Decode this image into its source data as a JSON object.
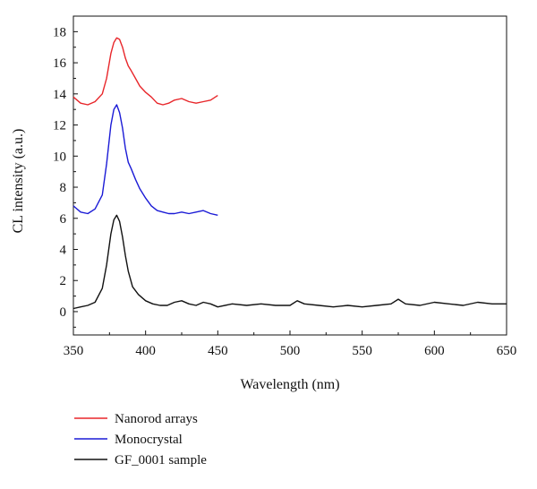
{
  "chart_data": {
    "type": "line",
    "title": "",
    "xlabel": "Wavelength (nm)",
    "ylabel": "CL intensity (a.u.)",
    "xlim": [
      350,
      650
    ],
    "ylim": [
      -1.5,
      19
    ],
    "xticks": [
      350,
      400,
      450,
      500,
      550,
      600,
      650
    ],
    "yticks": [
      0,
      2,
      4,
      6,
      8,
      10,
      12,
      14,
      16,
      18
    ],
    "grid": false,
    "legend_position": "bottom-left, below plot",
    "series": [
      {
        "name": "Nanorod arrays",
        "color": "#e8262a",
        "x": [
          350,
          355,
          360,
          365,
          370,
          373,
          376,
          378,
          380,
          382,
          384,
          386,
          388,
          390,
          393,
          396,
          400,
          404,
          408,
          412,
          416,
          420,
          425,
          430,
          435,
          440,
          445,
          450
        ],
        "y": [
          13.8,
          13.4,
          13.3,
          13.5,
          14.0,
          15.0,
          16.6,
          17.3,
          17.6,
          17.5,
          17.0,
          16.3,
          15.8,
          15.5,
          15.0,
          14.5,
          14.1,
          13.8,
          13.4,
          13.3,
          13.4,
          13.6,
          13.7,
          13.5,
          13.4,
          13.5,
          13.6,
          13.9
        ]
      },
      {
        "name": "Monocrystal",
        "color": "#1b1bd6",
        "x": [
          350,
          355,
          360,
          365,
          370,
          373,
          376,
          378,
          380,
          382,
          384,
          386,
          388,
          390,
          393,
          396,
          400,
          404,
          408,
          412,
          416,
          420,
          425,
          430,
          435,
          440,
          445,
          450
        ],
        "y": [
          6.8,
          6.4,
          6.3,
          6.6,
          7.5,
          9.5,
          12.0,
          13.0,
          13.3,
          12.8,
          11.8,
          10.5,
          9.6,
          9.2,
          8.5,
          7.9,
          7.3,
          6.8,
          6.5,
          6.4,
          6.3,
          6.3,
          6.4,
          6.3,
          6.4,
          6.5,
          6.3,
          6.2
        ]
      },
      {
        "name": "GF_0001 sample",
        "color": "#111111",
        "x": [
          350,
          355,
          360,
          365,
          370,
          373,
          376,
          378,
          380,
          382,
          384,
          386,
          388,
          391,
          395,
          400,
          405,
          410,
          415,
          420,
          425,
          430,
          435,
          440,
          445,
          450,
          460,
          470,
          480,
          490,
          500,
          505,
          510,
          520,
          530,
          540,
          550,
          560,
          570,
          575,
          580,
          590,
          600,
          610,
          620,
          630,
          640,
          650
        ],
        "y": [
          0.2,
          0.3,
          0.4,
          0.6,
          1.5,
          3.0,
          5.0,
          5.9,
          6.2,
          5.8,
          4.8,
          3.6,
          2.6,
          1.6,
          1.1,
          0.7,
          0.5,
          0.4,
          0.4,
          0.6,
          0.7,
          0.5,
          0.4,
          0.6,
          0.5,
          0.3,
          0.5,
          0.4,
          0.5,
          0.4,
          0.4,
          0.7,
          0.5,
          0.4,
          0.3,
          0.4,
          0.3,
          0.4,
          0.5,
          0.8,
          0.5,
          0.4,
          0.6,
          0.5,
          0.4,
          0.6,
          0.5,
          0.5
        ]
      }
    ]
  }
}
